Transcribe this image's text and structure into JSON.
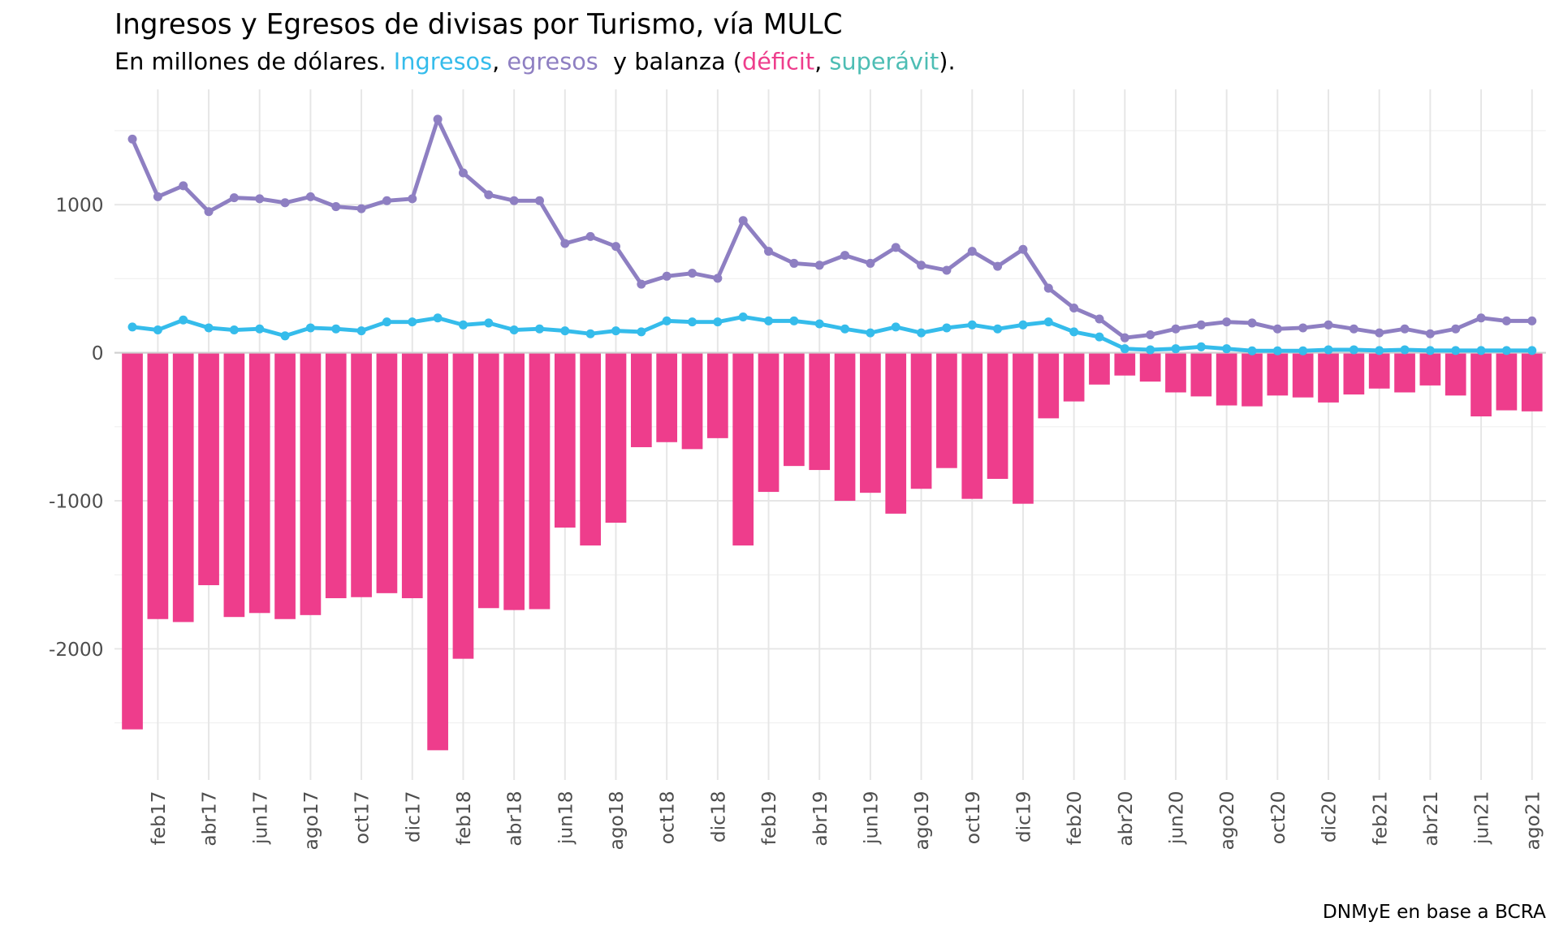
{
  "chart_data": {
    "type": "bar+line",
    "title": "Ingresos y Egresos de divisas por Turismo, vía MULC",
    "subtitle": {
      "prefix": "En millones de dólares. ",
      "ingresos": "Ingresos",
      "sep1": ", ",
      "egresos": "egresos",
      "mid": "  y balanza (",
      "deficit": "déficit",
      "sep2": ", ",
      "superavit": "superávit",
      "suffix": ")."
    },
    "caption": "DNMyE en base a BCRA",
    "xlabel": "",
    "ylabel": "",
    "ylim": [
      -2800,
      1700
    ],
    "y_ticks": [
      1000,
      0,
      -1000,
      -2000
    ],
    "y_tick_labels": [
      "1000",
      "0",
      "-1000",
      "-2000"
    ],
    "x_tick_labels": [
      "feb17",
      "abr17",
      "jun17",
      "ago17",
      "oct17",
      "dic17",
      "feb18",
      "abr18",
      "jun18",
      "ago18",
      "oct18",
      "dic18",
      "feb19",
      "abr19",
      "jun19",
      "ago19",
      "oct19",
      "dic19",
      "feb20",
      "abr20",
      "jun20",
      "ago20",
      "oct20",
      "dic20",
      "feb21",
      "abr21",
      "jun21",
      "ago21"
    ],
    "grid": true,
    "legend": "none (colored subtitle)",
    "colors": {
      "ingresos": "#35BCEB",
      "egresos": "#8E7FC2",
      "deficit": "#EE3D8C",
      "superavit": "#4DBDB4",
      "text": "#000000"
    },
    "x": [
      "ene17",
      "feb17",
      "mar17",
      "abr17",
      "may17",
      "jun17",
      "jul17",
      "ago17",
      "sep17",
      "oct17",
      "nov17",
      "dic17",
      "ene18",
      "feb18",
      "mar18",
      "abr18",
      "may18",
      "jun18",
      "jul18",
      "ago18",
      "sep18",
      "oct18",
      "nov18",
      "dic18",
      "ene19",
      "feb19",
      "mar19",
      "abr19",
      "may19",
      "jun19",
      "jul19",
      "ago19",
      "sep19",
      "oct19",
      "nov19",
      "dic19",
      "ene20",
      "feb20",
      "mar20",
      "abr20",
      "may20",
      "jun20",
      "jul20",
      "ago20",
      "sep20",
      "oct20",
      "nov20",
      "dic20",
      "ene21",
      "feb21",
      "mar21",
      "abr21",
      "may21",
      "jun21",
      "jul21",
      "ago21"
    ],
    "series": [
      {
        "name": "egresos",
        "type": "line",
        "values": [
          1443,
          1054,
          1128,
          953,
          1047,
          1040,
          1013,
          1054,
          987,
          973,
          1027,
          1040,
          1577,
          1215,
          1067,
          1027,
          1027,
          738,
          785,
          718,
          463,
          517,
          537,
          503,
          893,
          685,
          604,
          591,
          658,
          604,
          711,
          591,
          557,
          685,
          584,
          698,
          436,
          302,
          228,
          101,
          121,
          161,
          188,
          208,
          201,
          161,
          168,
          188,
          161,
          134,
          161,
          128,
          161,
          235,
          215,
          215
        ]
      },
      {
        "name": "ingresos",
        "type": "line",
        "values": [
          174,
          154,
          221,
          168,
          154,
          161,
          114,
          168,
          161,
          148,
          208,
          208,
          235,
          188,
          201,
          154,
          161,
          148,
          128,
          148,
          141,
          215,
          208,
          208,
          242,
          215,
          215,
          195,
          161,
          134,
          174,
          134,
          168,
          188,
          161,
          188,
          208,
          141,
          107,
          27,
          20,
          27,
          40,
          27,
          13,
          13,
          13,
          20,
          20,
          15,
          20,
          15,
          15,
          15,
          15,
          15
        ]
      },
      {
        "name": "balanza",
        "type": "bar",
        "values": [
          -2544,
          -1799,
          -1819,
          -1570,
          -1785,
          -1758,
          -1799,
          -1772,
          -1658,
          -1651,
          -1624,
          -1658,
          -2685,
          -2067,
          -1725,
          -1738,
          -1732,
          -1181,
          -1302,
          -1148,
          -638,
          -604,
          -651,
          -577,
          -1302,
          -940,
          -765,
          -792,
          -1000,
          -946,
          -1087,
          -919,
          -779,
          -987,
          -852,
          -1020,
          -443,
          -329,
          -215,
          -154,
          -195,
          -268,
          -295,
          -356,
          -362,
          -289,
          -302,
          -336,
          -282,
          -242,
          -268,
          -221,
          -289,
          -430,
          -389,
          -396
        ]
      }
    ]
  }
}
